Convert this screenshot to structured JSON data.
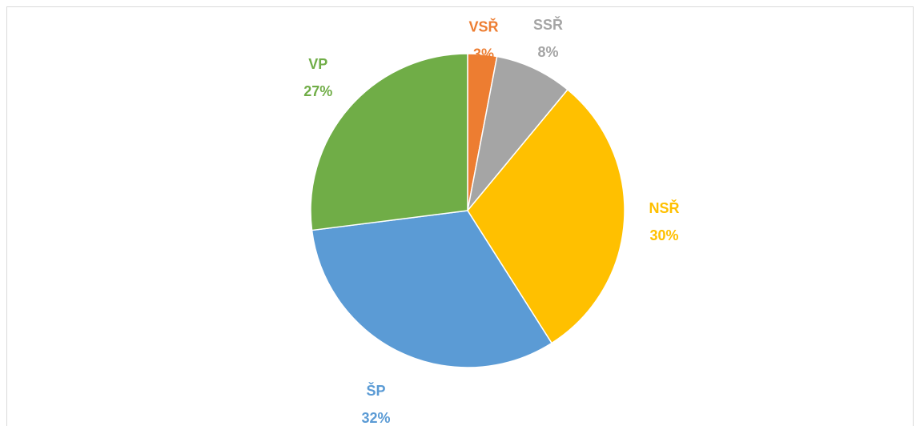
{
  "chart_data": {
    "type": "pie",
    "categories": [
      "VSŘ",
      "SSŘ",
      "NSŘ",
      "ŠP",
      "VP"
    ],
    "values": [
      3,
      8,
      30,
      32,
      27
    ],
    "value_labels": [
      "3%",
      "8%",
      "30%",
      "32%",
      "27%"
    ],
    "colors": [
      "#ed7d31",
      "#a5a5a5",
      "#ffc000",
      "#5b9bd5",
      "#70ad47"
    ]
  }
}
